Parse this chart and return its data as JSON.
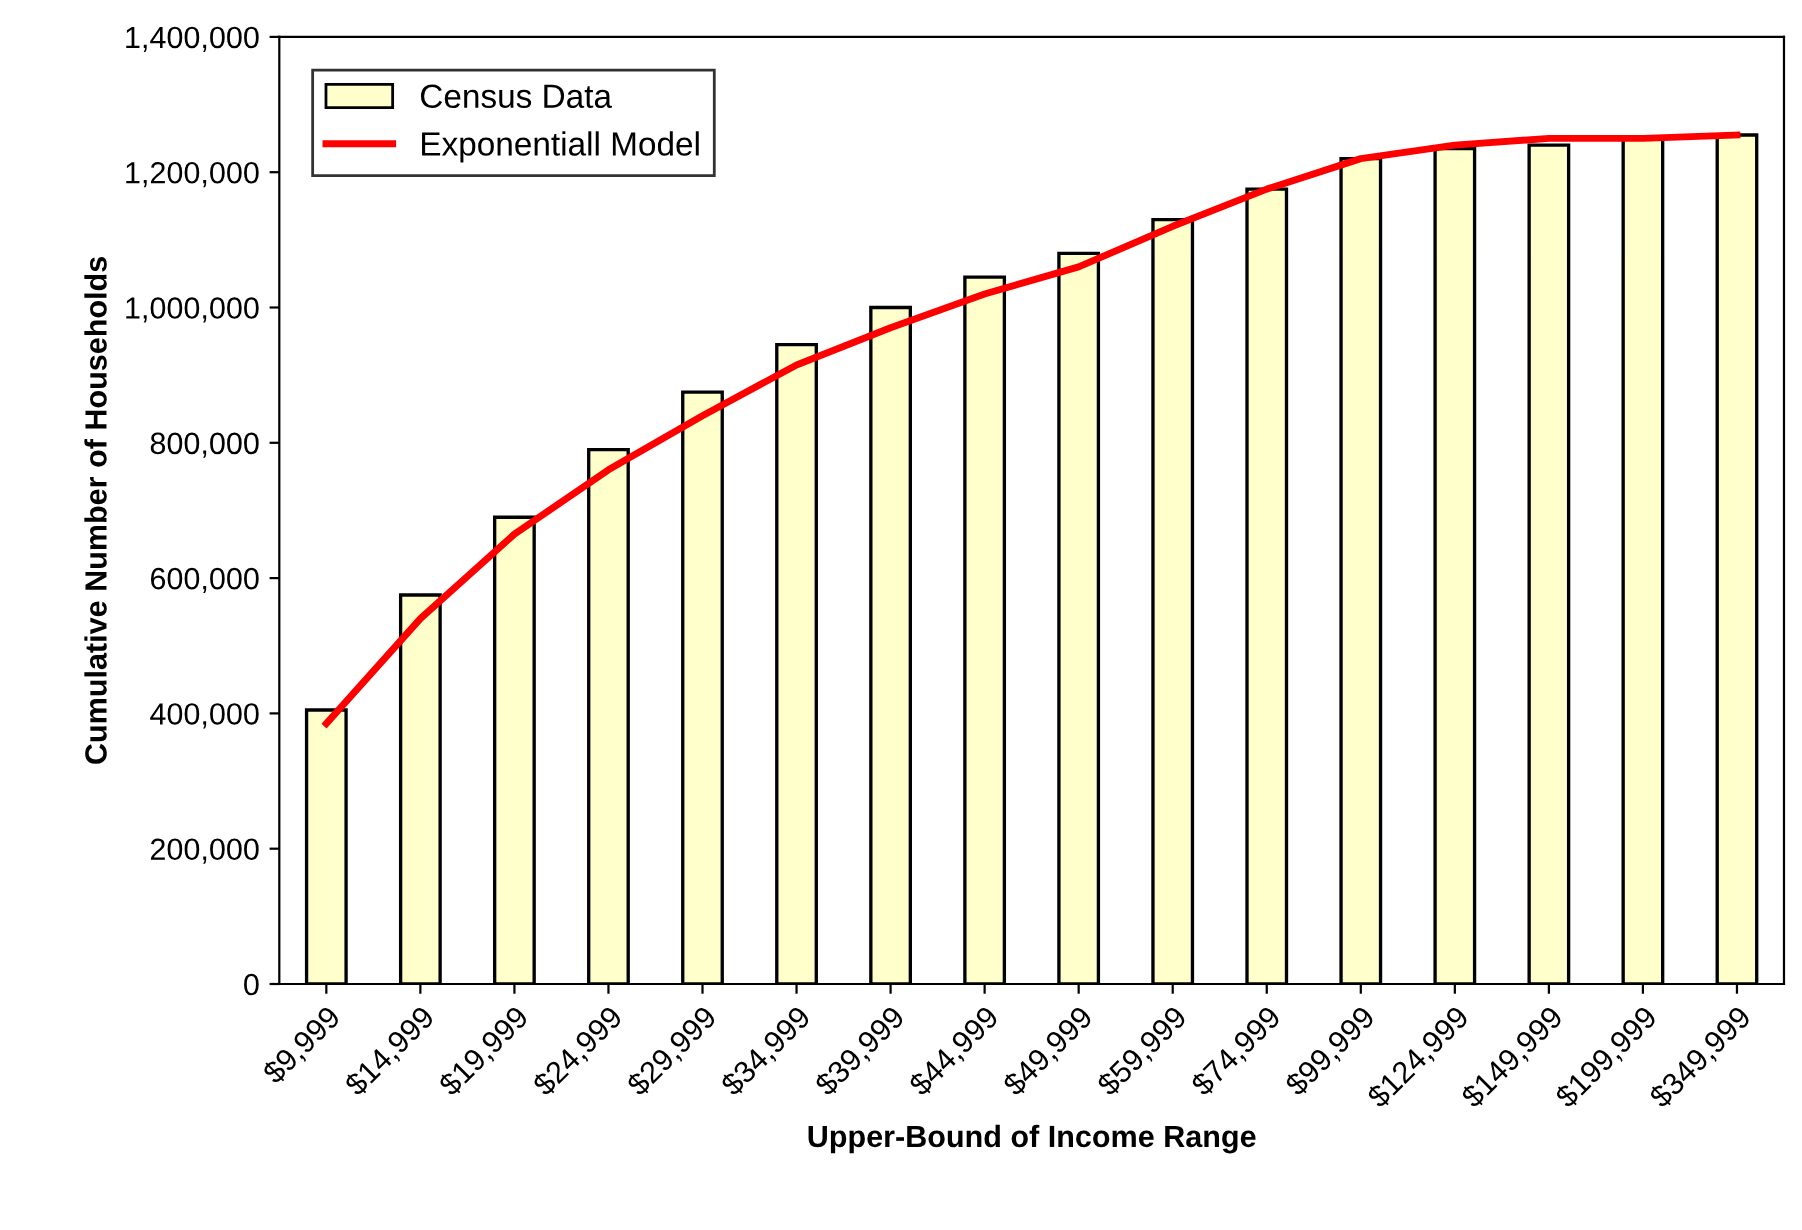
{
  "chart_data": {
    "type": "bar",
    "xlabel": "Upper-Bound of Income Range",
    "ylabel": "Cumulative Number of Households",
    "categories": [
      "$9,999",
      "$14,999",
      "$19,999",
      "$24,999",
      "$29,999",
      "$34,999",
      "$39,999",
      "$44,999",
      "$49,999",
      "$59,999",
      "$74,999",
      "$99,999",
      "$124,999",
      "$149,999",
      "$199,999",
      "$349,999"
    ],
    "series": [
      {
        "name": "Census Data",
        "color": "#ffffcc",
        "values": [
          405000,
          575000,
          690000,
          790000,
          875000,
          945000,
          1000000,
          1045000,
          1080000,
          1130000,
          1175000,
          1220000,
          1235000,
          1240000,
          1250000,
          1255000
        ]
      },
      {
        "name": "Exponentiall Model",
        "type": "line",
        "color": "#ff0000",
        "values": [
          385000,
          540000,
          665000,
          760000,
          840000,
          915000,
          970000,
          1020000,
          1060000,
          1120000,
          1175000,
          1220000,
          1240000,
          1250000,
          1250000,
          1255000
        ]
      }
    ],
    "ylim": [
      0,
      1400000
    ],
    "yticks": [
      {
        "value": 0,
        "label": "0"
      },
      {
        "value": 200000,
        "label": "200,000"
      },
      {
        "value": 400000,
        "label": "400,000"
      },
      {
        "value": 600000,
        "label": "600,000"
      },
      {
        "value": 800000,
        "label": "800,000"
      },
      {
        "value": 1000000,
        "label": "1,000,000"
      },
      {
        "value": 1200000,
        "label": "1,200,000"
      },
      {
        "value": 1400000,
        "label": "1,400,000"
      }
    ],
    "grid": false,
    "legend": "top left",
    "marker": "none",
    "line_style": "solid"
  }
}
